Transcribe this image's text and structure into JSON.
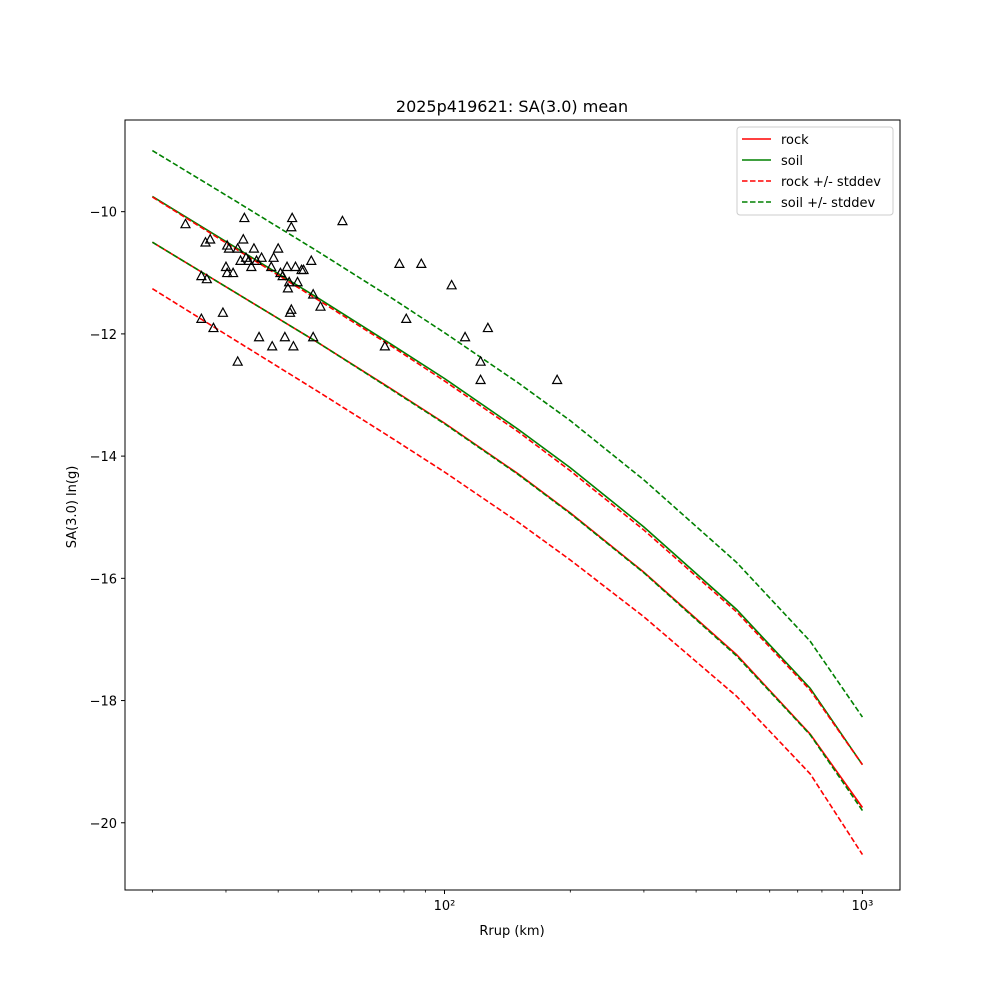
{
  "chart_data": {
    "type": "line",
    "title": "2025p419621: SA(3.0) mean",
    "xlabel": "Rrup (km)",
    "ylabel": "SA(3.0) ln(g)",
    "xscale": "log",
    "xlim": [
      17.2,
      1230
    ],
    "ylim": [
      -21.1,
      -8.5
    ],
    "x_ticks": [
      {
        "value": 100,
        "label": "10²"
      },
      {
        "value": 1000,
        "label": "10³"
      }
    ],
    "y_ticks": [
      {
        "value": -10,
        "label": "−10"
      },
      {
        "value": -12,
        "label": "−12"
      },
      {
        "value": -14,
        "label": "−14"
      },
      {
        "value": -16,
        "label": "−16"
      },
      {
        "value": -18,
        "label": "−18"
      },
      {
        "value": -20,
        "label": "−20"
      }
    ],
    "grid": false,
    "legend_position": "top-right",
    "legend": [
      {
        "label": "rock",
        "color": "#ff0000",
        "style": "solid"
      },
      {
        "label": "soil",
        "color": "#008000",
        "style": "solid"
      },
      {
        "label": "rock +/- stddev",
        "color": "#ff0000",
        "style": "dashed"
      },
      {
        "label": "soil +/- stddev",
        "color": "#008000",
        "style": "dashed"
      }
    ],
    "x": [
      20,
      30,
      50,
      75,
      100,
      150,
      200,
      300,
      500,
      750,
      1000
    ],
    "series": [
      {
        "name": "rock",
        "color": "#ff0000",
        "style": "solid",
        "values": [
          -10.5,
          -11.23,
          -12.15,
          -12.91,
          -13.46,
          -14.29,
          -14.93,
          -15.9,
          -17.25,
          -18.55,
          -19.75
        ]
      },
      {
        "name": "soil",
        "color": "#008000",
        "style": "solid",
        "values": [
          -9.75,
          -10.49,
          -11.42,
          -12.18,
          -12.73,
          -13.56,
          -14.19,
          -15.16,
          -16.51,
          -17.8,
          -19.05
        ]
      },
      {
        "name": "rock +/- stddev",
        "color": "#ff0000",
        "style": "dashed",
        "values": [
          -9.76,
          -10.51,
          -11.45,
          -12.21,
          -12.77,
          -13.6,
          -14.24,
          -15.21,
          -16.55,
          -17.83,
          -19.05
        ]
      },
      {
        "name": "rock +/- stddev",
        "color": "#ff0000",
        "style": "dashed",
        "values": [
          -11.26,
          -12.01,
          -12.95,
          -13.71,
          -14.26,
          -15.08,
          -15.7,
          -16.63,
          -17.93,
          -19.2,
          -20.52
        ]
      },
      {
        "name": "soil +/- stddev",
        "color": "#008000",
        "style": "dashed",
        "values": [
          -9.0,
          -9.73,
          -10.66,
          -11.42,
          -11.98,
          -12.8,
          -13.42,
          -14.39,
          -15.74,
          -17.03,
          -18.27
        ]
      },
      {
        "name": "soil +/- stddev",
        "color": "#008000",
        "style": "dashed",
        "values": [
          -10.5,
          -11.23,
          -12.15,
          -12.92,
          -13.47,
          -14.3,
          -14.94,
          -15.91,
          -17.27,
          -18.56,
          -19.8
        ]
      }
    ],
    "observations": {
      "marker": "triangle-open",
      "color": "#000000",
      "points": [
        [
          24,
          -10.2
        ],
        [
          26.2,
          -11.05
        ],
        [
          26.2,
          -11.75
        ],
        [
          26.8,
          -10.5
        ],
        [
          27,
          -11.1
        ],
        [
          27.5,
          -10.45
        ],
        [
          28,
          -11.9
        ],
        [
          29.5,
          -11.65
        ],
        [
          30,
          -10.9
        ],
        [
          30.2,
          -11.0
        ],
        [
          30.2,
          -10.55
        ],
        [
          30.5,
          -10.6
        ],
        [
          31.2,
          -11.0
        ],
        [
          32,
          -10.6
        ],
        [
          32,
          -12.45
        ],
        [
          32.5,
          -10.8
        ],
        [
          33,
          -10.45
        ],
        [
          33.2,
          -10.1
        ],
        [
          33.5,
          -10.75
        ],
        [
          34,
          -10.8
        ],
        [
          34.5,
          -10.9
        ],
        [
          35,
          -10.6
        ],
        [
          35.5,
          -10.8
        ],
        [
          36,
          -12.05
        ],
        [
          36.5,
          -10.75
        ],
        [
          38.5,
          -10.9
        ],
        [
          38.7,
          -12.2
        ],
        [
          39,
          -10.75
        ],
        [
          40,
          -10.6
        ],
        [
          40.5,
          -11.0
        ],
        [
          41,
          -11.05
        ],
        [
          41.5,
          -12.05
        ],
        [
          42,
          -10.9
        ],
        [
          42.2,
          -11.25
        ],
        [
          42.5,
          -11.15
        ],
        [
          42.7,
          -11.65
        ],
        [
          43,
          -11.6
        ],
        [
          43,
          -10.25
        ],
        [
          43.2,
          -10.1
        ],
        [
          43.5,
          -12.2
        ],
        [
          44,
          -10.9
        ],
        [
          44.5,
          -11.15
        ],
        [
          45.5,
          -10.95
        ],
        [
          46,
          -10.95
        ],
        [
          48,
          -10.8
        ],
        [
          48.5,
          -11.35
        ],
        [
          48.5,
          -12.05
        ],
        [
          50.5,
          -11.55
        ],
        [
          57,
          -10.15
        ],
        [
          72,
          -12.2
        ],
        [
          78,
          -10.85
        ],
        [
          81,
          -11.75
        ],
        [
          88,
          -10.85
        ],
        [
          104,
          -11.2
        ],
        [
          112,
          -12.05
        ],
        [
          122,
          -12.45
        ],
        [
          122,
          -12.75
        ],
        [
          127,
          -11.9
        ],
        [
          186,
          -12.75
        ]
      ]
    }
  }
}
